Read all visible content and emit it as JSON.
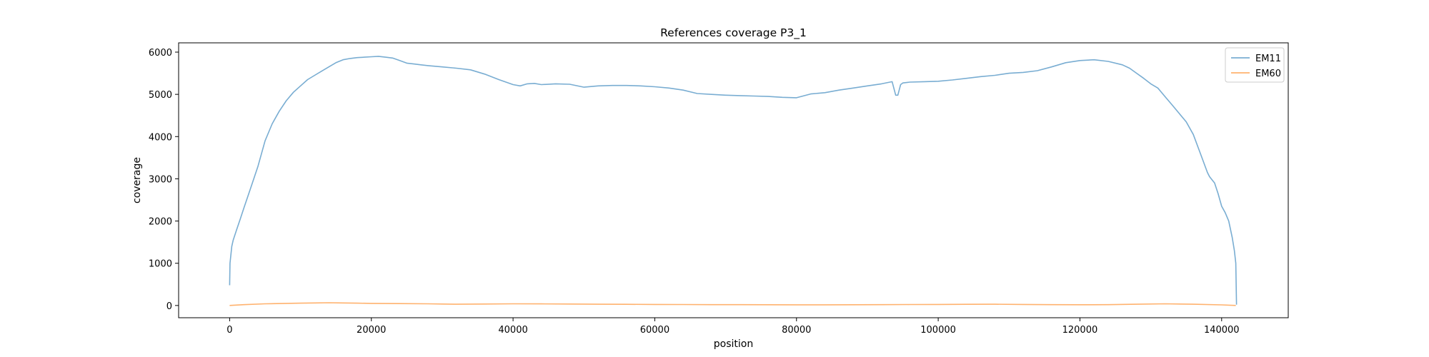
{
  "chart_data": {
    "type": "line",
    "title": "References coverage P3_1",
    "xlabel": "position",
    "ylabel": "coverage",
    "xlim": [
      -7200,
      149400
    ],
    "ylim": [
      -290,
      6220
    ],
    "xticks": [
      0,
      20000,
      40000,
      60000,
      80000,
      100000,
      120000,
      140000
    ],
    "yticks": [
      0,
      1000,
      2000,
      3000,
      4000,
      5000,
      6000
    ],
    "grid": false,
    "legend_position": "top-right",
    "series": [
      {
        "name": "EM11",
        "color": "#1f77b4",
        "x": [
          0,
          50,
          300,
          500,
          1000,
          1500,
          2000,
          2500,
          3000,
          4000,
          5000,
          6000,
          7000,
          8000,
          9000,
          10000,
          11000,
          12000,
          13000,
          14000,
          15000,
          16000,
          17000,
          18000,
          19000,
          20000,
          21000,
          22000,
          23000,
          24000,
          25000,
          26000,
          27000,
          28000,
          30000,
          32000,
          34000,
          36000,
          38000,
          40000,
          41000,
          42000,
          43000,
          44000,
          46000,
          48000,
          50000,
          52000,
          54000,
          56000,
          58000,
          60000,
          62000,
          64000,
          66000,
          68000,
          70000,
          72000,
          74000,
          76000,
          78000,
          80000,
          82000,
          84000,
          86000,
          88000,
          90000,
          92000,
          93500,
          94000,
          94300,
          94700,
          95000,
          96000,
          98000,
          100000,
          102000,
          104000,
          106000,
          108000,
          110000,
          112000,
          114000,
          116000,
          118000,
          120000,
          122000,
          124000,
          126000,
          127000,
          128000,
          129000,
          130000,
          131000,
          132000,
          133000,
          134000,
          135000,
          136000,
          137000,
          138000,
          138300,
          139000,
          139500,
          140000,
          140500,
          141000,
          141500,
          141800,
          142000,
          142100
        ],
        "y": [
          480,
          1000,
          1400,
          1550,
          1800,
          2050,
          2300,
          2550,
          2800,
          3300,
          3900,
          4300,
          4600,
          4850,
          5050,
          5200,
          5350,
          5450,
          5550,
          5650,
          5750,
          5820,
          5850,
          5870,
          5880,
          5890,
          5900,
          5880,
          5860,
          5800,
          5740,
          5720,
          5700,
          5680,
          5650,
          5620,
          5580,
          5480,
          5350,
          5230,
          5200,
          5250,
          5260,
          5230,
          5250,
          5240,
          5170,
          5200,
          5210,
          5210,
          5200,
          5180,
          5150,
          5100,
          5020,
          5000,
          4980,
          4970,
          4960,
          4950,
          4930,
          4920,
          5010,
          5040,
          5100,
          5150,
          5200,
          5250,
          5300,
          4980,
          4980,
          5230,
          5270,
          5290,
          5300,
          5310,
          5340,
          5380,
          5420,
          5450,
          5500,
          5520,
          5560,
          5650,
          5750,
          5800,
          5820,
          5780,
          5700,
          5620,
          5500,
          5380,
          5250,
          5150,
          4950,
          4750,
          4550,
          4350,
          4050,
          3600,
          3150,
          3050,
          2900,
          2650,
          2350,
          2200,
          2000,
          1600,
          1300,
          1000,
          20
        ]
      },
      {
        "name": "EM60",
        "color": "#ff7f0e",
        "x": [
          0,
          2000,
          5000,
          8000,
          10000,
          12000,
          14000,
          16000,
          18000,
          20000,
          24000,
          28000,
          30000,
          32000,
          36000,
          40000,
          44000,
          48000,
          52000,
          56000,
          60000,
          64000,
          68000,
          72000,
          76000,
          80000,
          84000,
          88000,
          92000,
          96000,
          100000,
          104000,
          108000,
          112000,
          116000,
          120000,
          124000,
          128000,
          132000,
          136000,
          140000,
          142000
        ],
        "y": [
          0,
          20,
          40,
          50,
          55,
          60,
          65,
          60,
          55,
          50,
          45,
          40,
          35,
          30,
          35,
          40,
          38,
          35,
          30,
          28,
          25,
          22,
          20,
          20,
          18,
          16,
          16,
          18,
          20,
          22,
          25,
          28,
          30,
          25,
          20,
          18,
          20,
          30,
          40,
          30,
          15,
          0
        ]
      }
    ]
  }
}
